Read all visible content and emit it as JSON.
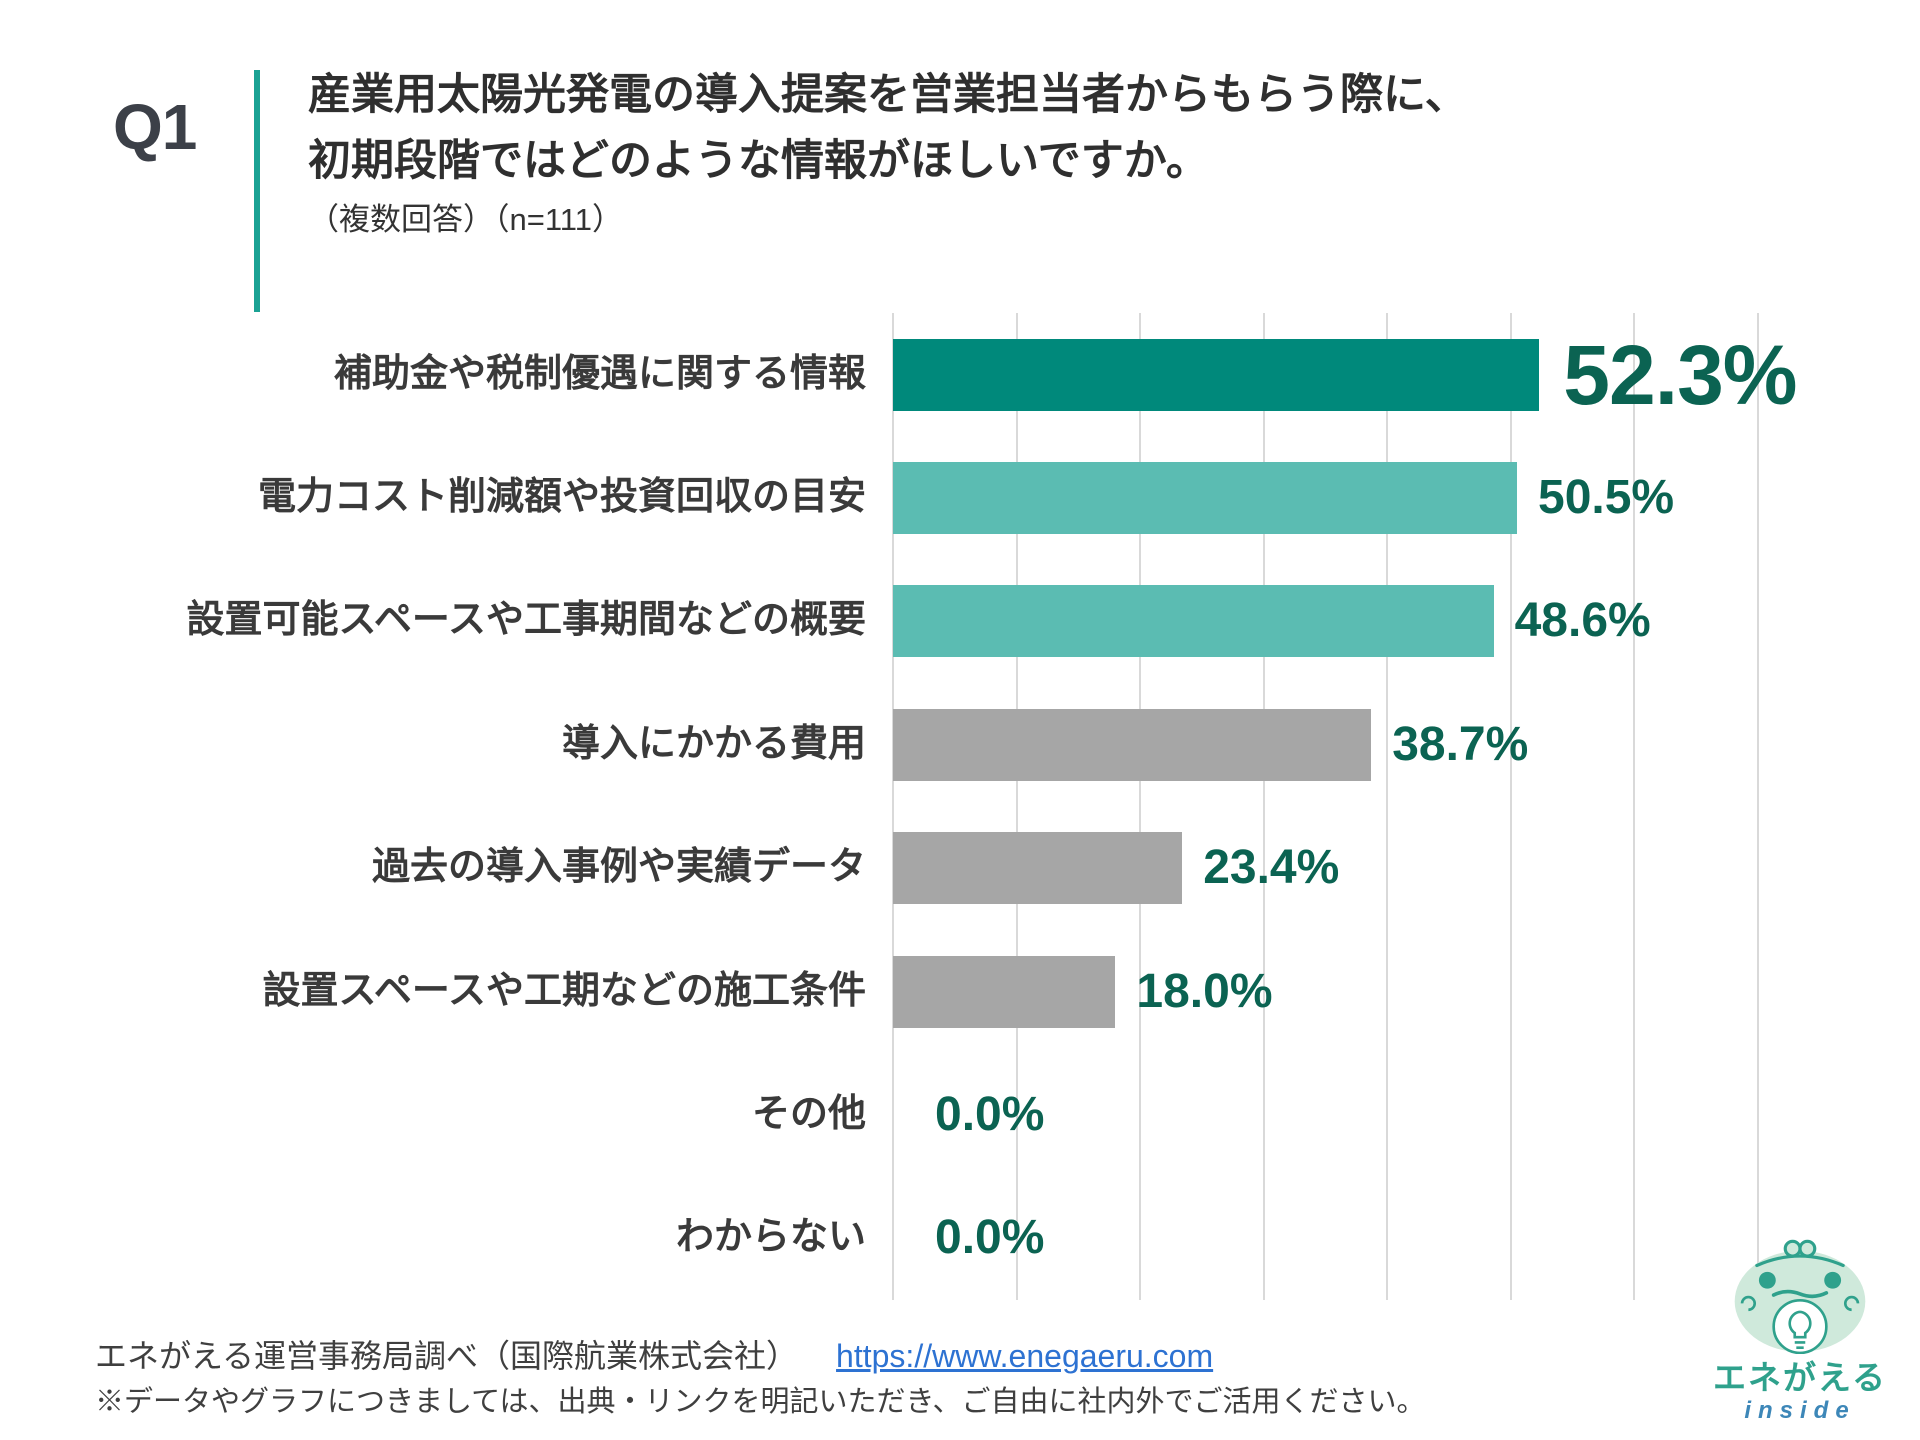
{
  "header": {
    "q_label": "Q1",
    "title_line1": "産業用太陽光発電の導入提案を営業担当者からもらう際に、",
    "title_line2": "初期段階ではどのような情報がほしいですか。",
    "subtitle": "（複数回答）（n=111）"
  },
  "chart_data": {
    "type": "bar",
    "orientation": "horizontal",
    "title": "産業用太陽光発電の導入提案を営業担当者からもらう際に、初期段階ではどのような情報がほしいですか。（複数回答）（n=111）",
    "categories": [
      "補助金や税制優遇に関する情報",
      "電力コスト削減額や投資回収の目安",
      "設置可能スペースや工事期間などの概要",
      "導入にかかる費用",
      "過去の導入事例や実績データ",
      "設置スペースや工期などの施工条件",
      "その他",
      "わからない"
    ],
    "values": [
      52.3,
      50.5,
      48.6,
      38.7,
      23.4,
      18.0,
      0.0,
      0.0
    ],
    "value_labels": [
      "52.3%",
      "50.5%",
      "48.6%",
      "38.7%",
      "23.4%",
      "18.0%",
      "0.0%",
      "0.0%"
    ],
    "bar_colors": [
      "#00897B",
      "#5BBCB2",
      "#5BBCB2",
      "#A6A6A6",
      "#A6A6A6",
      "#A6A6A6",
      null,
      null
    ],
    "highlight_index": 0,
    "xlabel": "",
    "ylabel": "",
    "xlim": [
      0,
      70
    ],
    "gridline_interval": 10,
    "grid": true,
    "legend": false
  },
  "footer": {
    "source_text": "エネがえる運営事務局調べ（国際航業株式会社）",
    "source_link": "https://www.enegaeru.com",
    "note": "※データやグラフにつきましては、出典・リンクを明記いただき、ご自由に社内外でご活用ください。"
  },
  "logo": {
    "icon": "frog-lightbulb-icon",
    "brand": "エネがえる",
    "sub": "inside"
  },
  "colors": {
    "accent_rule": "#1BA294",
    "bar_primary": "#00897B",
    "bar_secondary": "#5BBCB2",
    "bar_neutral": "#A6A6A6",
    "value_text": "#0B6352",
    "gridline": "#D9D9D9",
    "title_text": "#2F2F2F",
    "category_text": "#3A3A3A",
    "footer_text": "#3F3F3F",
    "link_blue": "#2D72D2",
    "logo_teal": "#2FA18C",
    "logo_head_fill": "#CFE9DB",
    "logo_inside_blue": "#3D87B8"
  }
}
